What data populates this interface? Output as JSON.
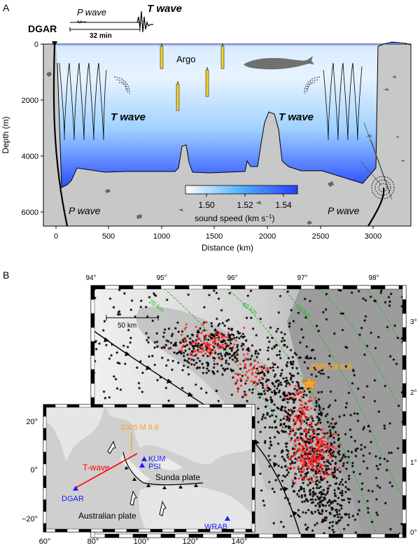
{
  "panel_a": {
    "letter": "A",
    "inset": {
      "station": "DGAR",
      "p_label": "P wave",
      "t_label": "T wave",
      "time_scale": "32 min"
    },
    "argo": "Argo",
    "t_wave_left": "T wave",
    "t_wave_right": "T wave",
    "p_wave_left": "P wave",
    "p_wave_right": "P wave",
    "y_axis_label": "Depth (m)",
    "x_axis_label": "Distance (km)",
    "y_ticks": [
      "0",
      "2000",
      "4000",
      "6000"
    ],
    "x_ticks": [
      "0",
      "500",
      "1000",
      "1500",
      "2000",
      "2500",
      "3000"
    ],
    "colorbar": {
      "ticks": [
        "1.50",
        "1.52",
        "1.54"
      ],
      "label": "sound speed (km s",
      "label_sup": "−1",
      "label_end": ")"
    },
    "colors": {
      "ocean_top": "#ffffff",
      "ocean_bottom": "#1f3dff",
      "seafloor": "#c8c8c8",
      "float": "#f2d22a"
    }
  },
  "panel_b": {
    "letter": "B",
    "top_lon_ticks": [
      "94°",
      "95°",
      "96°",
      "97°",
      "98°"
    ],
    "right_lat_ticks": [
      "3°",
      "2°",
      "1°",
      "0°"
    ],
    "depth_contours": [
      "20 km",
      "40 km",
      "60 km"
    ],
    "scale_bar": "50 km",
    "event_label": "2005 M 8.6",
    "colors": {
      "event": "#f5a623",
      "aftershock": "#ff2020",
      "background": "#000000",
      "contour": "#22bb22"
    }
  },
  "inset_map": {
    "event_label": "2005 M 8.6",
    "t_wave_label": "T-wave",
    "stations": [
      "KUM",
      "PSI",
      "DGAR",
      "WRAB"
    ],
    "sunda_plate": "Sunda plate",
    "australian_plate": "Australian plate",
    "lat_ticks": [
      "20°",
      "0°",
      "−20°"
    ],
    "lon_ticks": [
      "60°",
      "80°",
      "100°",
      "120°",
      "140°"
    ],
    "colors": {
      "station": "#1a1aff",
      "t_wave": "#ff0000",
      "event": "#f5a623"
    }
  }
}
